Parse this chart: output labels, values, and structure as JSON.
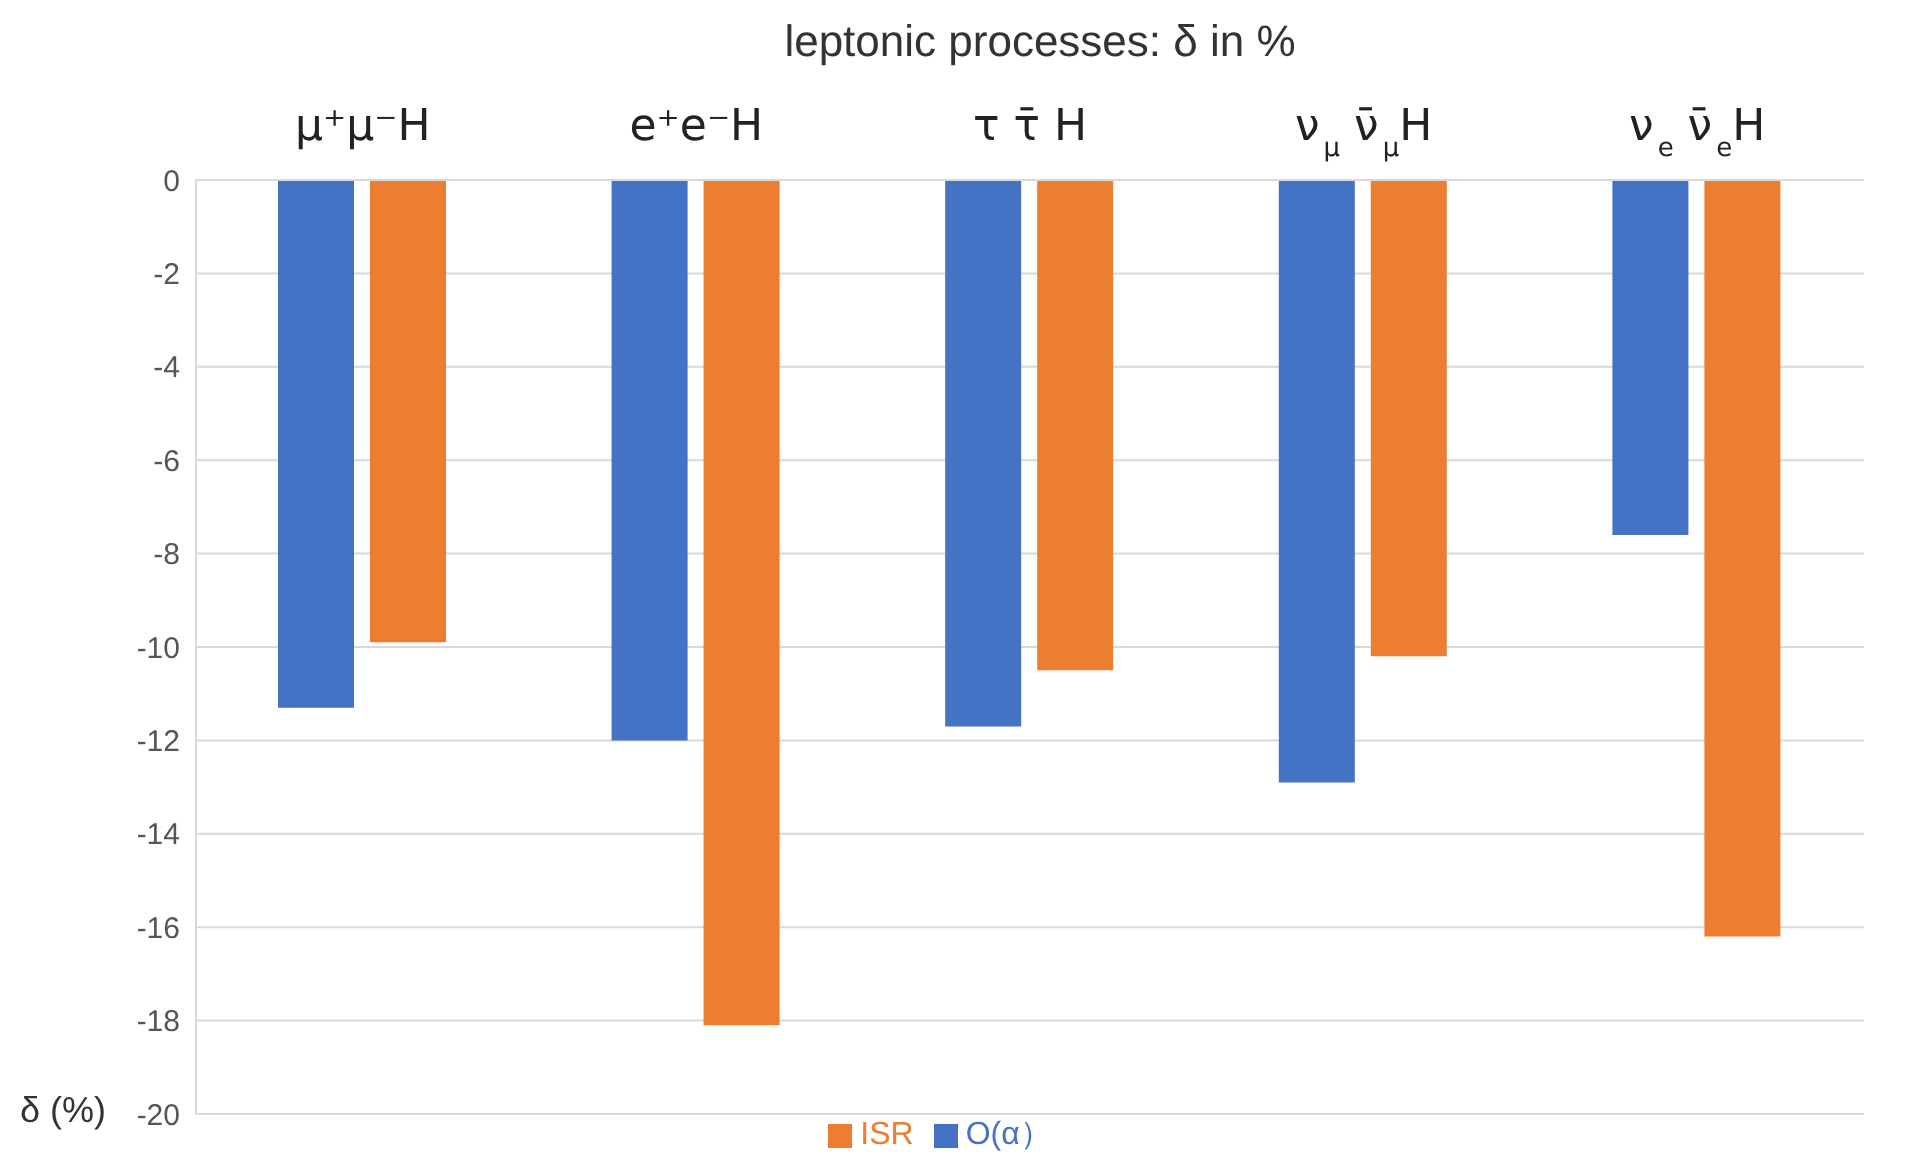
{
  "chart_data": {
    "type": "bar",
    "title": "leptonic processes:    δ  in %",
    "ylabel": "δ (%)",
    "categories": [
      "μ⁺μ⁻H",
      "e⁺e⁻H",
      "τ  τ̄ H",
      "ν$_{μ}$ ν̄$_{μ}$H",
      "ν$_{e}$ ν̄$_{e}$H"
    ],
    "series": [
      {
        "name": "O(α）",
        "color": "#4472c4",
        "values": [
          -11.3,
          -12.0,
          -11.7,
          -12.9,
          -7.6
        ]
      },
      {
        "name": "ISR",
        "color": "#ed7d31",
        "values": [
          -9.9,
          -18.1,
          -10.5,
          -10.2,
          -16.2
        ]
      }
    ],
    "ylim": [
      -20,
      0
    ],
    "yticks": [
      0,
      -2,
      -4,
      -6,
      -8,
      -10,
      -12,
      -14,
      -16,
      -18,
      -20
    ],
    "grid": "y",
    "legend": "bottom"
  }
}
